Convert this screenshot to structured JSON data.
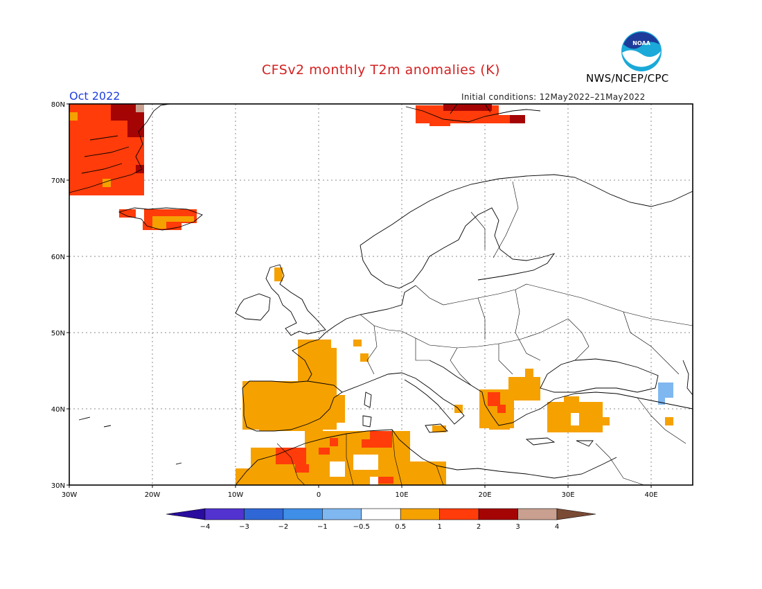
{
  "title": "CFSv2 monthly T2m anomalies (K)",
  "agency": "NWS/NCEP/CPC",
  "logo_text": "NOAA",
  "valid_month": "Oct 2022",
  "initial_conditions": "Initial conditions: 12May2022–21May2022",
  "map": {
    "lat_labels": [
      "80N",
      "70N",
      "60N",
      "50N",
      "40N",
      "30N"
    ],
    "lon_labels": [
      "30W",
      "20W",
      "10W",
      "0",
      "10E",
      "20E",
      "30E",
      "40E"
    ],
    "extent": {
      "lon_min": -30,
      "lon_max": 45,
      "lat_min": 30,
      "lat_max": 80
    }
  },
  "colorbar": {
    "labels": [
      "−4",
      "−3",
      "−2",
      "−1",
      "−0.5",
      "0.5",
      "1",
      "2",
      "3",
      "4"
    ],
    "colors": [
      "#2a0c9e",
      "#5233d0",
      "#2f67d6",
      "#3f8ee8",
      "#7fb7f0",
      "#ffffff",
      "#f5a100",
      "#ff3c0a",
      "#a50404",
      "#c9a090",
      "#7a4a35"
    ]
  },
  "chart_data": {
    "type": "heatmap",
    "variable": "T2m anomaly (K)",
    "anomaly_regions": [
      {
        "region": "Greenland east coast",
        "lon": [
          -30,
          -21
        ],
        "lat": [
          68,
          80
        ],
        "class": "1 to 2"
      },
      {
        "region": "Svalbard",
        "lon": [
          11,
          25
        ],
        "lat": [
          76.5,
          79.5
        ],
        "class": "1 to 2"
      },
      {
        "region": "Iceland",
        "lon": [
          -24,
          -13
        ],
        "lat": [
          63.5,
          66.5
        ],
        "class": "1 to 2"
      },
      {
        "region": "Northern Scotland",
        "lon": [
          -5,
          -4
        ],
        "lat": [
          58,
          60
        ],
        "class": "0.5 to 1"
      },
      {
        "region": "Western France",
        "lon": [
          -3,
          2
        ],
        "lat": [
          43,
          49
        ],
        "class": "0.5 to 1"
      },
      {
        "region": "Iberian Peninsula",
        "lon": [
          -9,
          2
        ],
        "lat": [
          36,
          43
        ],
        "class": "0.5 to 1"
      },
      {
        "region": "Northwest Africa",
        "lon": [
          -10,
          16
        ],
        "lat": [
          30,
          37
        ],
        "class": "0.5 to 2"
      },
      {
        "region": "Balkans",
        "lon": [
          19,
          27
        ],
        "lat": [
          38,
          45
        ],
        "class": "0.5 to 2"
      },
      {
        "region": "Western Turkey",
        "lon": [
          27,
          35
        ],
        "lat": [
          36,
          41
        ],
        "class": "0.5 to 1"
      },
      {
        "region": "Caucasus",
        "lon": [
          41,
          43
        ],
        "lat": [
          39,
          42
        ],
        "class": "-1 to -0.5"
      }
    ]
  }
}
